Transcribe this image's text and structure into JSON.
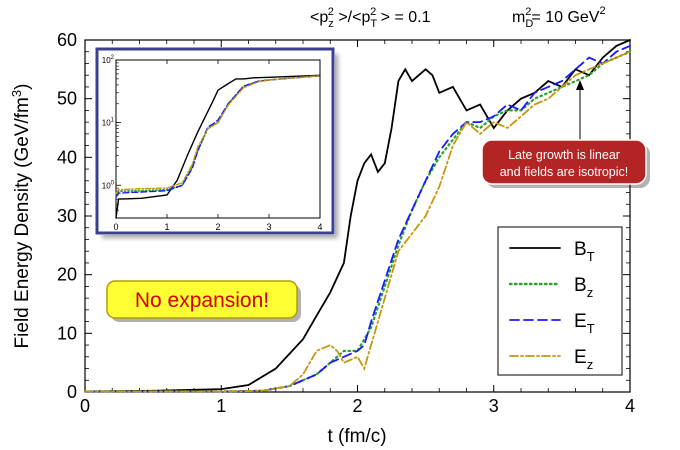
{
  "header": {
    "ratio_label": "<p_z^2>/<p_T^2> = 0.1",
    "mass_label": "m_D^2 = 10 GeV^2"
  },
  "chart_data": [
    {
      "type": "line",
      "title": "",
      "xlabel": "t (fm/c)",
      "ylabel": "Field Energy Density (GeV/fm³)",
      "xlim": [
        0,
        4
      ],
      "ylim": [
        0,
        60
      ],
      "xticks": [
        "0",
        "1",
        "2",
        "3",
        "4"
      ],
      "yticks": [
        "0",
        "10",
        "20",
        "30",
        "40",
        "50",
        "60"
      ],
      "grid": false,
      "legend_position": "bottom-right",
      "series": [
        {
          "name": "B_T",
          "color": "#000000",
          "dash": "solid",
          "x": [
            0,
            0.5,
            1.0,
            1.2,
            1.4,
            1.6,
            1.7,
            1.8,
            1.9,
            1.95,
            2.0,
            2.05,
            2.1,
            2.15,
            2.2,
            2.25,
            2.3,
            2.35,
            2.4,
            2.45,
            2.5,
            2.55,
            2.6,
            2.7,
            2.8,
            2.9,
            3.0,
            3.1,
            3.2,
            3.3,
            3.4,
            3.5,
            3.6,
            3.7,
            3.8,
            3.9,
            4.0
          ],
          "y": [
            0.1,
            0.2,
            0.5,
            1.2,
            4,
            9,
            13,
            17,
            22,
            30,
            36,
            39,
            40.5,
            37.5,
            39,
            45,
            53,
            55,
            53,
            54,
            55,
            54,
            51,
            52,
            48,
            49,
            45,
            48,
            50,
            51,
            53,
            52,
            55,
            54,
            57,
            59,
            60
          ]
        },
        {
          "name": "B_z",
          "color": "#2ca02c",
          "dash": "dot",
          "x": [
            0,
            0.5,
            1.0,
            1.3,
            1.5,
            1.7,
            1.8,
            1.9,
            1.95,
            2.0,
            2.1,
            2.2,
            2.3,
            2.4,
            2.5,
            2.6,
            2.7,
            2.8,
            2.9,
            3.0,
            3.1,
            3.2,
            3.3,
            3.4,
            3.5,
            3.6,
            3.7,
            3.8,
            3.9,
            4.0
          ],
          "y": [
            0.1,
            0.1,
            0.1,
            0.2,
            1,
            3,
            5,
            7,
            7,
            7,
            11,
            18,
            25,
            31,
            36,
            40,
            43,
            46,
            45,
            47,
            48,
            48,
            50,
            51,
            52,
            53,
            54,
            56,
            57,
            58
          ]
        },
        {
          "name": "E_T",
          "color": "#1a1aff",
          "dash": "dash",
          "x": [
            0,
            0.5,
            1.0,
            1.3,
            1.5,
            1.7,
            1.8,
            1.9,
            2.0,
            2.05,
            2.1,
            2.2,
            2.3,
            2.4,
            2.5,
            2.6,
            2.7,
            2.8,
            2.9,
            3.0,
            3.1,
            3.2,
            3.3,
            3.4,
            3.5,
            3.6,
            3.7,
            3.8,
            3.9,
            4.0
          ],
          "y": [
            0.1,
            0.1,
            0.1,
            0.2,
            1,
            3,
            5,
            6,
            7,
            8,
            12,
            19,
            26,
            31,
            36,
            41,
            44,
            46,
            46,
            47,
            49,
            48,
            51,
            52,
            53,
            55,
            57,
            56,
            58,
            59
          ]
        },
        {
          "name": "E_z",
          "color": "#c8960c",
          "dash": "dashdot",
          "x": [
            0,
            0.5,
            1.0,
            1.3,
            1.5,
            1.6,
            1.7,
            1.8,
            1.85,
            1.9,
            2.0,
            2.05,
            2.1,
            2.2,
            2.3,
            2.4,
            2.5,
            2.6,
            2.7,
            2.8,
            2.9,
            3.0,
            3.1,
            3.2,
            3.3,
            3.4,
            3.5,
            3.6,
            3.7,
            3.8,
            3.9,
            4.0
          ],
          "y": [
            0.1,
            0.1,
            0.1,
            0.2,
            1,
            3,
            7,
            8,
            7,
            5,
            6,
            4,
            8,
            16,
            24,
            27,
            30,
            35,
            42,
            46,
            44,
            46,
            45,
            47,
            49,
            50,
            52,
            54,
            55,
            56,
            57,
            58
          ]
        }
      ],
      "annotations": [
        {
          "text": "No expansion!"
        },
        {
          "text_lines": [
            "Late growth is linear",
            "and fields are isotropic!"
          ]
        }
      ]
    },
    {
      "type": "line",
      "title": "",
      "xlim": [
        0,
        4
      ],
      "ylim": [
        0.3,
        100
      ],
      "yscale": "log",
      "xticks": [
        "0",
        "1",
        "2",
        "3",
        "4"
      ],
      "yticks": [
        "10^0",
        "10^1",
        "10^2"
      ],
      "grid": false,
      "series": [
        {
          "name": "B_T",
          "color": "#000000",
          "dash": "solid",
          "x": [
            0,
            0.05,
            0.5,
            1.0,
            1.2,
            1.4,
            1.6,
            1.8,
            1.9,
            2.0,
            2.2,
            2.35,
            2.5,
            2.7,
            3.0,
            3.5,
            4.0
          ],
          "y": [
            0.3,
            0.6,
            0.62,
            0.7,
            1.2,
            3.0,
            7.0,
            15,
            22,
            33,
            42,
            50,
            50,
            52,
            53,
            55,
            57
          ]
        },
        {
          "name": "B_z",
          "color": "#2ca02c",
          "dash": "dot",
          "x": [
            0,
            0.05,
            0.5,
            1.0,
            1.3,
            1.5,
            1.6,
            1.8,
            1.9,
            2.0,
            2.2,
            2.5,
            2.8,
            3.0,
            3.5,
            4.0
          ],
          "y": [
            0.7,
            0.8,
            0.82,
            0.85,
            1.0,
            2.0,
            3.5,
            8.0,
            9.0,
            10,
            20,
            38,
            46,
            48,
            52,
            56
          ]
        },
        {
          "name": "E_T",
          "color": "#1a1aff",
          "dash": "dash",
          "x": [
            0,
            0.05,
            0.5,
            1.0,
            1.3,
            1.5,
            1.6,
            1.8,
            1.9,
            2.0,
            2.2,
            2.5,
            2.8,
            3.0,
            3.5,
            4.0
          ],
          "y": [
            0.65,
            0.75,
            0.78,
            0.82,
            1.0,
            1.9,
            3.5,
            8.5,
            9.5,
            11,
            20,
            38,
            46,
            48,
            52,
            56
          ]
        },
        {
          "name": "E_z",
          "color": "#c8960c",
          "dash": "dashdot",
          "x": [
            0,
            0.05,
            0.5,
            1.0,
            1.3,
            1.5,
            1.6,
            1.8,
            1.9,
            2.0,
            2.2,
            2.5,
            2.8,
            3.0,
            3.5,
            4.0
          ],
          "y": [
            0.75,
            0.85,
            0.88,
            0.9,
            1.1,
            2.2,
            4.0,
            8.0,
            9.0,
            10,
            19,
            36,
            45,
            48,
            52,
            56
          ]
        }
      ]
    }
  ],
  "colors": {
    "inset_border": "#3a3f8f",
    "callout_no_expansion_fill": "#ffff33",
    "callout_no_expansion_text": "#d40000",
    "callout_linear_fill": "#b32424",
    "callout_linear_text": "#ffffff"
  }
}
